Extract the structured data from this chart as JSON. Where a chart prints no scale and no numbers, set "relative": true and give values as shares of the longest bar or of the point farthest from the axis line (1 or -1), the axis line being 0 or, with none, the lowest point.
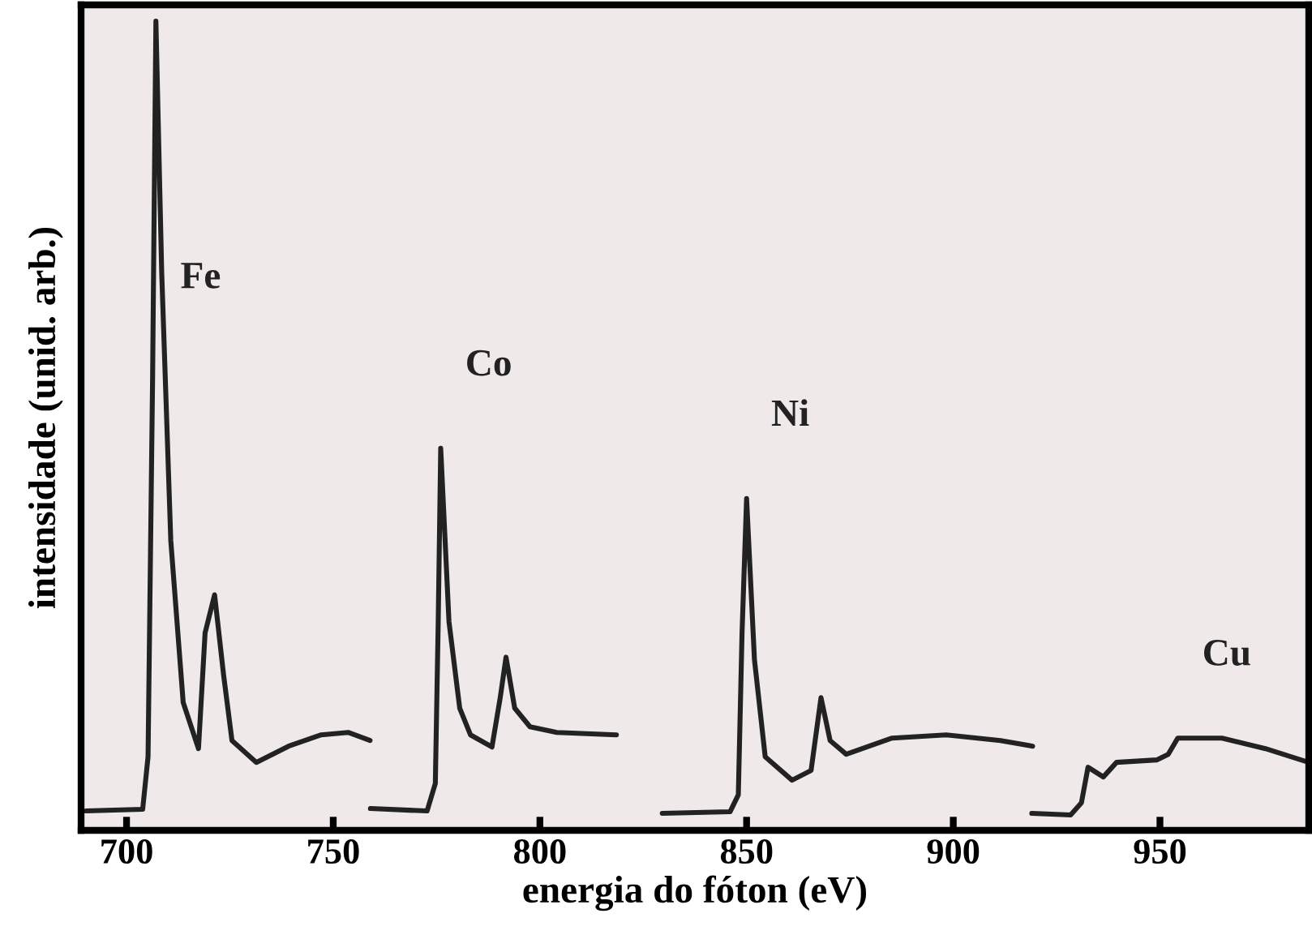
{
  "chart_data": {
    "type": "line",
    "relative": true,
    "xlabel": "energia do fóton (eV)",
    "ylabel": "intensidade (unid. arb.)",
    "xlim": [
      689,
      986
    ],
    "xticks": [
      700,
      750,
      800,
      850,
      900,
      950
    ],
    "tick_labels": "x",
    "series": [
      {
        "name": "Fe",
        "color": "#222222",
        "x": [
          690.2,
          703.9,
          705.2,
          706.3,
          707.1,
          708.5,
          710.7,
          713.7,
          717.4,
          719.0,
          721.3,
          723.5,
          725.5,
          731.4,
          739.2,
          747.1,
          753.6,
          758.9
        ],
        "values": [
          0.024,
          0.026,
          0.091,
          0.559,
          1.0,
          0.69,
          0.358,
          0.158,
          0.101,
          0.244,
          0.291,
          0.191,
          0.111,
          0.084,
          0.104,
          0.118,
          0.121,
          0.111
        ]
      },
      {
        "name": "Co",
        "color": "#222222",
        "x": [
          759.0,
          772.7,
          774.7,
          775.4,
          776.0,
          778.0,
          780.6,
          783.2,
          788.4,
          790.4,
          791.8,
          793.9,
          797.6,
          804.1,
          818.5
        ],
        "values": [
          0.027,
          0.024,
          0.058,
          0.258,
          0.472,
          0.258,
          0.151,
          0.118,
          0.103,
          0.164,
          0.214,
          0.151,
          0.128,
          0.121,
          0.118
        ]
      },
      {
        "name": "Ni",
        "color": "#222222",
        "x": [
          829.6,
          846.0,
          848.0,
          848.9,
          850.0,
          851.9,
          854.5,
          861.0,
          865.6,
          868.0,
          870.2,
          874.1,
          885.2,
          898.3,
          911.4,
          919.2
        ],
        "values": [
          0.021,
          0.023,
          0.044,
          0.244,
          0.41,
          0.211,
          0.091,
          0.062,
          0.074,
          0.164,
          0.111,
          0.094,
          0.114,
          0.118,
          0.111,
          0.104
        ]
      },
      {
        "name": "Cu",
        "color": "#222222",
        "x": [
          919.0,
          928.4,
          931.0,
          932.6,
          936.3,
          939.5,
          949.2,
          952.0,
          954.3,
          965.0,
          975.5,
          986.0
        ],
        "values": [
          0.021,
          0.019,
          0.034,
          0.078,
          0.066,
          0.084,
          0.087,
          0.094,
          0.114,
          0.114,
          0.101,
          0.084
        ]
      }
    ]
  }
}
